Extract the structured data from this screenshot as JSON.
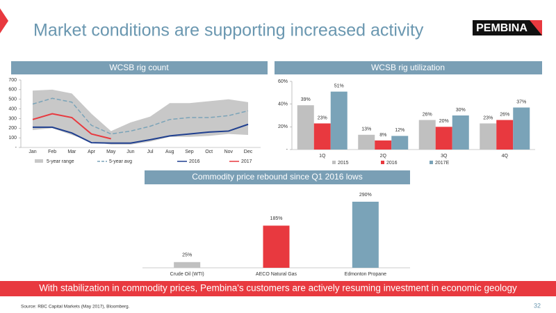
{
  "title": "Market conditions are supporting increased activity",
  "logo": "PEMBINA",
  "footer_banner": "With stabilization in commodity prices, Pembina's customers are actively resuming investment in economic geology",
  "source": "Source: RBC Capital Markets (May 2017), Bloomberg.",
  "page_number": "32",
  "chart_data": [
    {
      "type": "line",
      "title": "WCSB rig count",
      "categories": [
        "Jan",
        "Feb",
        "Mar",
        "Apr",
        "May",
        "Jun",
        "Jul",
        "Aug",
        "Sep",
        "Oct",
        "Nov",
        "Dec"
      ],
      "series": [
        {
          "name": "5-year range",
          "color": "#c8c8c8",
          "style": "band",
          "values": [
            590,
            600,
            560,
            350,
            170,
            260,
            320,
            460,
            460,
            480,
            500,
            470
          ],
          "low": [
            180,
            200,
            130,
            60,
            30,
            30,
            60,
            110,
            110,
            120,
            140,
            130
          ]
        },
        {
          "name": "5-year avg",
          "color": "#7aa3b8",
          "style": "dashed",
          "values": [
            450,
            510,
            470,
            230,
            140,
            170,
            220,
            290,
            310,
            310,
            330,
            380
          ]
        },
        {
          "name": "2016",
          "color": "#1f3f8f",
          "style": "solid",
          "values": [
            210,
            210,
            150,
            50,
            45,
            45,
            80,
            120,
            140,
            160,
            170,
            240
          ]
        },
        {
          "name": "2017",
          "color": "#e8393f",
          "style": "solid",
          "values": [
            290,
            350,
            310,
            140,
            90,
            null,
            null,
            null,
            null,
            null,
            null,
            null
          ]
        }
      ],
      "ylim": [
        0,
        700
      ],
      "yticks": [
        {
          "value": 0,
          "label": "-"
        },
        100,
        200,
        300,
        400,
        500,
        600,
        700
      ]
    },
    {
      "type": "bar",
      "title": "WCSB rig utilization",
      "categories": [
        "1Q",
        "2Q",
        "3Q",
        "4Q"
      ],
      "series": [
        {
          "name": "2015",
          "color": "#c0c0c0",
          "values": [
            39,
            13,
            26,
            23
          ],
          "value_labels": [
            "39%",
            "13%",
            "26%",
            "23%"
          ]
        },
        {
          "name": "2016",
          "color": "#e8393f",
          "values": [
            23,
            8,
            20,
            26
          ],
          "value_labels": [
            "23%",
            "8%",
            "20%",
            "26%"
          ]
        },
        {
          "name": "2017E",
          "color": "#7aa3b8",
          "values": [
            51,
            12,
            30,
            37
          ],
          "value_labels": [
            "51%",
            "12%",
            "30%",
            "37%"
          ]
        }
      ],
      "ylim": [
        0,
        60
      ],
      "yticks": [
        {
          "value": 0,
          "label": "-"
        },
        {
          "value": 20,
          "label": "20%"
        },
        {
          "value": 40,
          "label": "40%"
        },
        {
          "value": 60,
          "label": "60%"
        }
      ]
    },
    {
      "type": "column",
      "title": "Commodity price rebound since Q1 2016 lows",
      "categories": [
        "Crude Oil (WTI)",
        "AECO Natural Gas",
        "Edmonton Propane"
      ],
      "values": [
        25,
        185,
        290
      ],
      "value_labels": [
        "25%",
        "185%",
        "290%"
      ],
      "colors": [
        "#c0c0c0",
        "#e8393f",
        "#7aa3b8"
      ]
    }
  ]
}
